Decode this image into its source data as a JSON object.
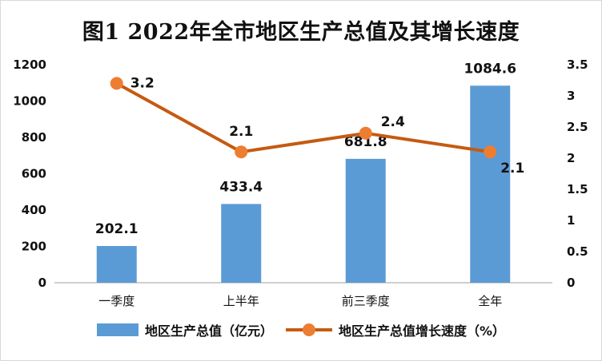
{
  "chart_data": {
    "type": "bar",
    "title": "图1 2022年全市地区生产总值及其增长速度",
    "categories": [
      "一季度",
      "上半年",
      "前三季度",
      "全年"
    ],
    "series": [
      {
        "name": "地区生产总值（亿元）",
        "type": "bar",
        "axis": "left",
        "values": [
          202.1,
          433.4,
          681.8,
          1084.6
        ],
        "color": "#5b9bd5"
      },
      {
        "name": "地区生产总值增长速度（%）",
        "type": "line",
        "axis": "right",
        "values": [
          3.2,
          2.1,
          2.4,
          2.1
        ],
        "color": "#c55a11",
        "marker_color": "#ed7d31"
      }
    ],
    "y_left": {
      "min": 0,
      "max": 1200,
      "ticks": [
        "0",
        "200",
        "400",
        "600",
        "800",
        "1000",
        "1200"
      ]
    },
    "y_right": {
      "min": 0,
      "max": 3.5,
      "ticks": [
        "0",
        "0.5",
        "1",
        "1.5",
        "2",
        "2.5",
        "3",
        "3.5"
      ]
    },
    "bar_labels": [
      "202.1",
      "433.4",
      "681.8",
      "1084.6"
    ],
    "line_labels": [
      "3.2",
      "2.1",
      "2.4",
      "2.1"
    ],
    "legend_position": "bottom",
    "grid": false
  }
}
